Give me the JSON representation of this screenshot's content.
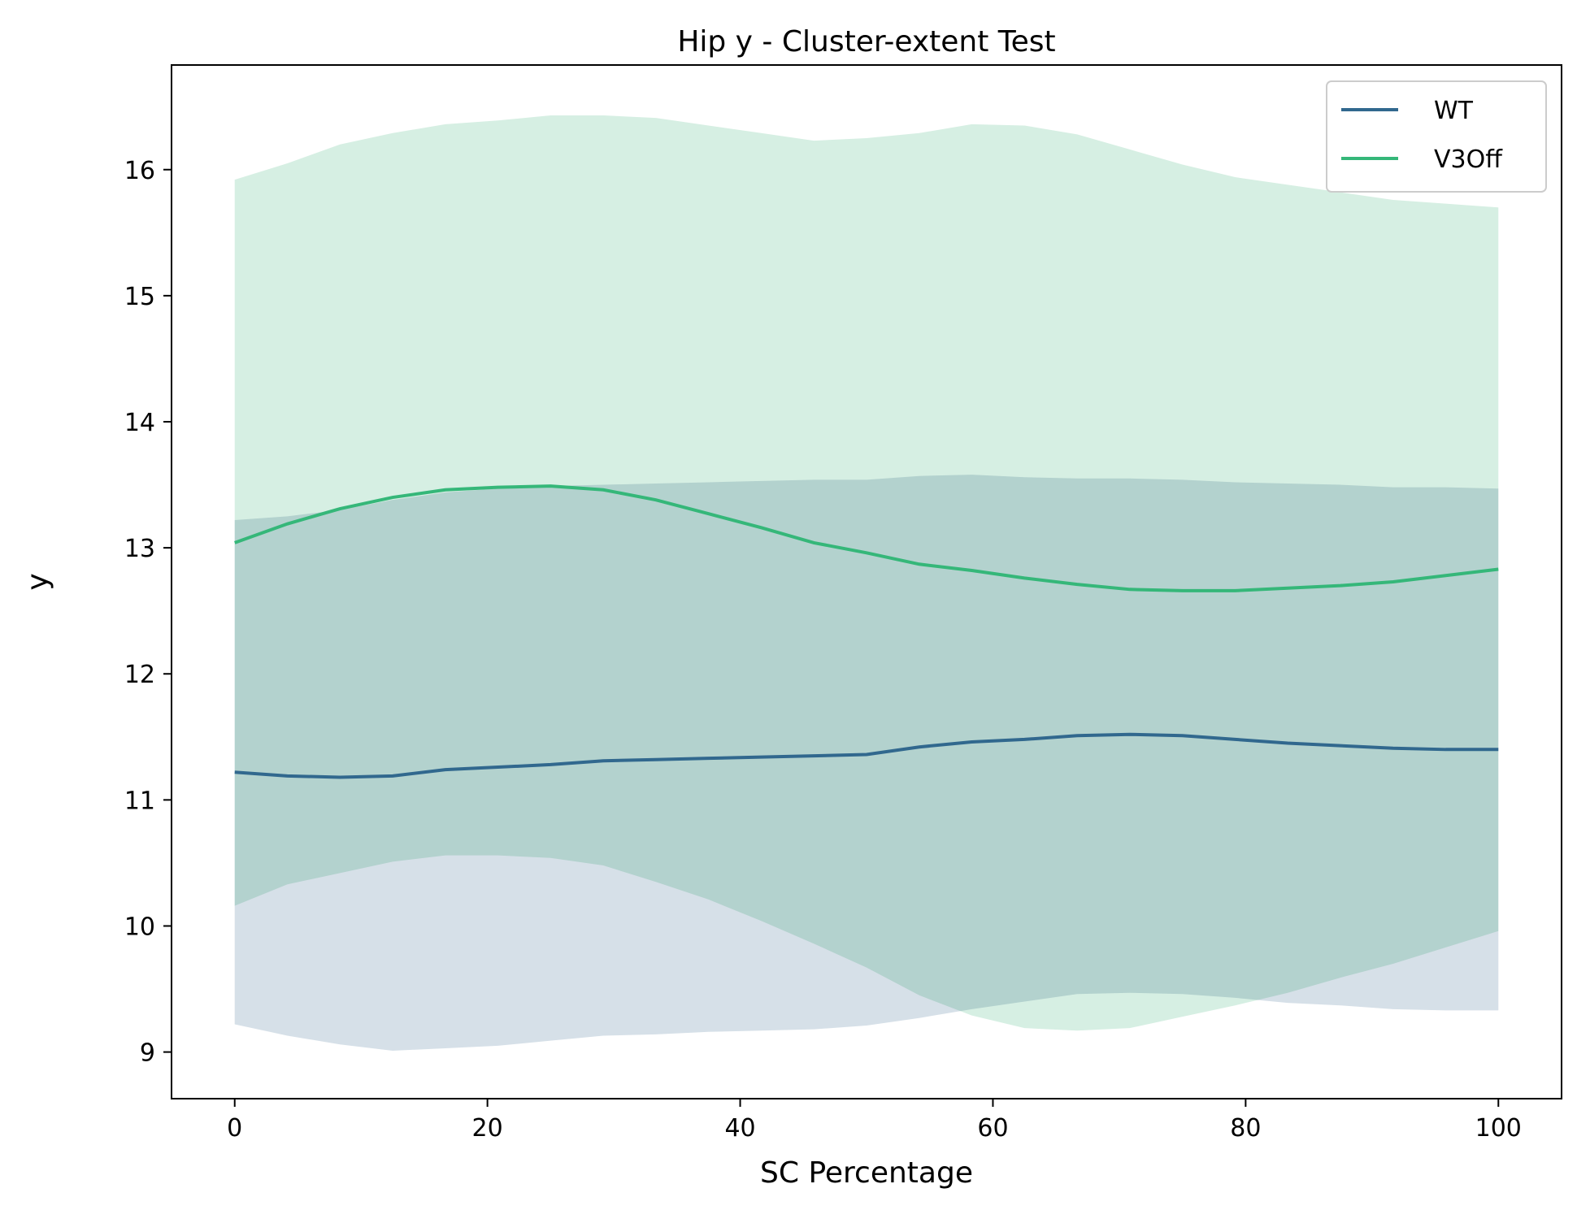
{
  "chart_data": {
    "type": "line",
    "title": "Hip y - Cluster-extent Test",
    "xlabel": "SC Percentage",
    "ylabel": "y",
    "xlim": [
      -5,
      105
    ],
    "ylim": [
      8.63,
      16.83
    ],
    "xticks": [
      0,
      20,
      40,
      60,
      80,
      100
    ],
    "yticks": [
      9,
      10,
      11,
      12,
      13,
      14,
      15,
      16
    ],
    "legend_position": "top-right",
    "grid": false,
    "x": [
      0,
      4.17,
      8.33,
      12.5,
      16.67,
      20.83,
      25,
      29.17,
      33.33,
      37.5,
      41.67,
      45.83,
      50,
      54.17,
      58.33,
      62.5,
      66.67,
      70.83,
      75,
      79.17,
      83.33,
      87.5,
      91.67,
      95.83,
      100
    ],
    "series": [
      {
        "name": "WT",
        "color": "#31688e",
        "band_color": "#d6e0e8",
        "values": [
          11.22,
          11.19,
          11.18,
          11.19,
          11.24,
          11.26,
          11.28,
          11.31,
          11.32,
          11.33,
          11.34,
          11.35,
          11.36,
          11.42,
          11.46,
          11.48,
          11.51,
          11.52,
          11.51,
          11.48,
          11.45,
          11.43,
          11.41,
          11.4,
          11.4
        ],
        "upper": [
          13.22,
          13.25,
          13.3,
          13.38,
          13.44,
          13.47,
          13.49,
          13.5,
          13.51,
          13.52,
          13.53,
          13.54,
          13.54,
          13.57,
          13.58,
          13.56,
          13.55,
          13.55,
          13.54,
          13.52,
          13.51,
          13.5,
          13.48,
          13.48,
          13.47
        ],
        "lower": [
          9.22,
          9.13,
          9.06,
          9.01,
          9.03,
          9.05,
          9.09,
          9.13,
          9.14,
          9.16,
          9.17,
          9.18,
          9.21,
          9.27,
          9.34,
          9.4,
          9.46,
          9.47,
          9.46,
          9.43,
          9.39,
          9.37,
          9.34,
          9.33,
          9.33
        ]
      },
      {
        "name": "V3Off",
        "color": "#35b779",
        "band_color": "#d6efe3",
        "values": [
          13.04,
          13.19,
          13.31,
          13.4,
          13.46,
          13.48,
          13.49,
          13.46,
          13.38,
          13.27,
          13.16,
          13.04,
          12.96,
          12.87,
          12.82,
          12.76,
          12.71,
          12.67,
          12.66,
          12.66,
          12.68,
          12.7,
          12.73,
          12.78,
          12.83
        ],
        "upper": [
          15.92,
          16.05,
          16.2,
          16.29,
          16.36,
          16.39,
          16.43,
          16.43,
          16.41,
          16.35,
          16.29,
          16.23,
          16.25,
          16.29,
          16.36,
          16.35,
          16.28,
          16.16,
          16.04,
          15.94,
          15.88,
          15.82,
          15.76,
          15.73,
          15.7
        ],
        "lower": [
          10.16,
          10.33,
          10.42,
          10.51,
          10.56,
          10.56,
          10.54,
          10.48,
          10.35,
          10.21,
          10.04,
          9.86,
          9.67,
          9.45,
          9.29,
          9.19,
          9.17,
          9.19,
          9.28,
          9.37,
          9.47,
          9.59,
          9.7,
          9.83,
          9.96
        ]
      }
    ]
  }
}
